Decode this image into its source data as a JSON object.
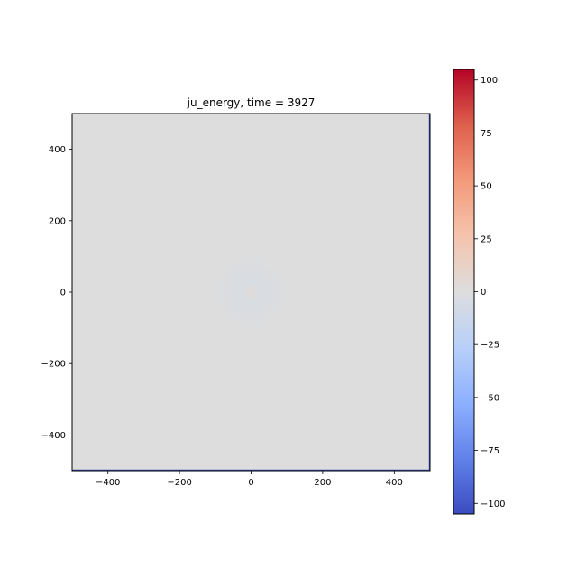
{
  "chart_data": {
    "type": "heatmap",
    "title": "ju_energy, time = 3927",
    "xlabel": "",
    "ylabel": "",
    "xlim": [
      -500,
      500
    ],
    "ylim": [
      -500,
      500
    ],
    "x_ticks": [
      -400,
      -200,
      0,
      200,
      400
    ],
    "y_ticks": [
      -400,
      -200,
      0,
      200,
      400
    ],
    "x_tick_labels": [
      "−400",
      "−200",
      "0",
      "200",
      "400"
    ],
    "y_tick_labels": [
      "−400",
      "−200",
      "0",
      "200",
      "400"
    ],
    "background_value": 0,
    "features": [
      {
        "kind": "ring",
        "center": [
          0,
          0
        ],
        "radius": 100,
        "value": -3
      },
      {
        "kind": "blob",
        "center": [
          0,
          0
        ],
        "radius": 20,
        "value": 3
      }
    ],
    "grid": false,
    "colorbar": {
      "colormap": "coolwarm",
      "min": -105,
      "max": 105,
      "ticks": [
        -100,
        -75,
        -50,
        -25,
        0,
        25,
        50,
        75,
        100
      ],
      "tick_labels": [
        "−100",
        "−75",
        "−50",
        "−25",
        "0",
        "25",
        "50",
        "75",
        "100"
      ]
    },
    "colors": {
      "cmap_low": "#3b4cc0",
      "cmap_mid": "#dddddd",
      "cmap_high": "#b40426",
      "frame": "#000000"
    }
  }
}
